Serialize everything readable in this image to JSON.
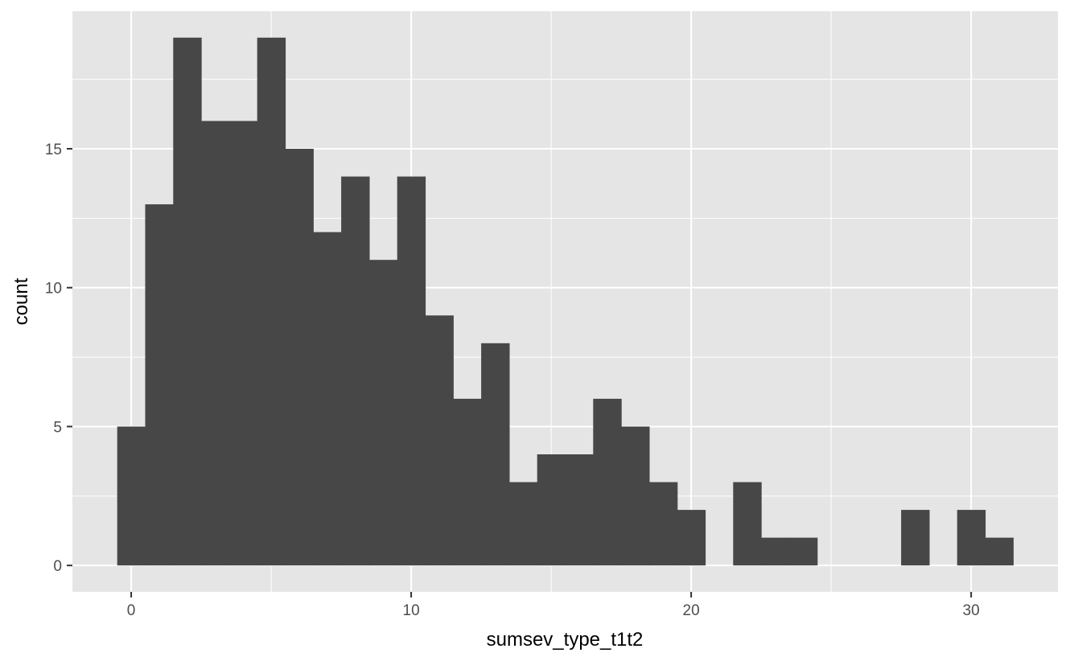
{
  "chart_data": {
    "type": "bar",
    "subtype": "histogram",
    "title": "",
    "xlabel": "sumsev_type_t1t2",
    "ylabel": "count",
    "bin_width": 1,
    "bins": [
      {
        "x": 0,
        "count": 5
      },
      {
        "x": 1,
        "count": 13
      },
      {
        "x": 2,
        "count": 19
      },
      {
        "x": 3,
        "count": 16
      },
      {
        "x": 4,
        "count": 16
      },
      {
        "x": 5,
        "count": 19
      },
      {
        "x": 6,
        "count": 15
      },
      {
        "x": 7,
        "count": 12
      },
      {
        "x": 8,
        "count": 14
      },
      {
        "x": 9,
        "count": 11
      },
      {
        "x": 10,
        "count": 14
      },
      {
        "x": 11,
        "count": 9
      },
      {
        "x": 12,
        "count": 6
      },
      {
        "x": 13,
        "count": 8
      },
      {
        "x": 14,
        "count": 3
      },
      {
        "x": 15,
        "count": 4
      },
      {
        "x": 16,
        "count": 4
      },
      {
        "x": 17,
        "count": 6
      },
      {
        "x": 18,
        "count": 5
      },
      {
        "x": 19,
        "count": 3
      },
      {
        "x": 20,
        "count": 2
      },
      {
        "x": 21,
        "count": 0
      },
      {
        "x": 22,
        "count": 3
      },
      {
        "x": 23,
        "count": 1
      },
      {
        "x": 24,
        "count": 1
      },
      {
        "x": 25,
        "count": 0
      },
      {
        "x": 26,
        "count": 0
      },
      {
        "x": 27,
        "count": 0
      },
      {
        "x": 28,
        "count": 2
      },
      {
        "x": 29,
        "count": 0
      },
      {
        "x": 30,
        "count": 2
      },
      {
        "x": 31,
        "count": 1
      }
    ],
    "xlim": [
      -2.1,
      33.1
    ],
    "ylim": [
      -0.95,
      19.95
    ],
    "x_ticks": [
      0,
      10,
      20,
      30
    ],
    "x_tick_labels": [
      "0",
      "10",
      "20",
      "30"
    ],
    "y_ticks": [
      0,
      5,
      10,
      15
    ],
    "y_tick_labels": [
      "0",
      "5",
      "10",
      "15"
    ],
    "grid": true,
    "legend": "none",
    "colors": {
      "panel_background": "#e5e5e5",
      "grid_major": "#ffffff",
      "bar_fill": "#474747",
      "tick_mark": "#333333"
    }
  }
}
